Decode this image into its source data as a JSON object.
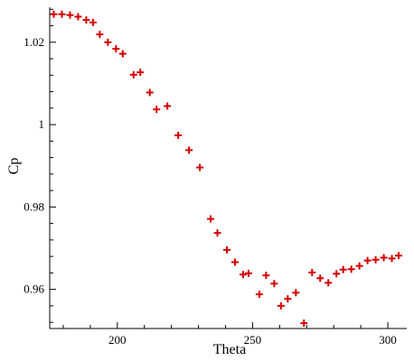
{
  "chart_data": {
    "type": "scatter",
    "xlabel": "Theta",
    "ylabel": "Cp",
    "xlim": [
      175,
      307
    ],
    "ylim": [
      0.9505,
      1.0285
    ],
    "xticks": [
      200,
      250,
      300
    ],
    "xtick_labels": [
      "200",
      "250",
      "300"
    ],
    "yticks": [
      0.96,
      0.98,
      1.0,
      1.02
    ],
    "ytick_labels": [
      "0.96",
      "0.98",
      "1",
      "1.02"
    ],
    "marker": "plus",
    "marker_color": "#d40000",
    "grid": false,
    "legend": "none",
    "series": [
      {
        "x": [
          176.5,
          179.5,
          182.5,
          185.5,
          188.5,
          191.0,
          193.5,
          196.5,
          199.5,
          202.0,
          206.0,
          208.5,
          212.0,
          214.5,
          218.5,
          222.5,
          226.5,
          230.5,
          234.5,
          237.0,
          240.5,
          243.5,
          246.5,
          248.5,
          252.5,
          255.0,
          258.0,
          260.5,
          263.0,
          266.0,
          269.0,
          272.0,
          275.0,
          278.0,
          281.0,
          283.5,
          286.5,
          289.5,
          292.5,
          295.5,
          298.5,
          301.5,
          304.0
        ],
        "y": [
          1.0268,
          1.0268,
          1.0266,
          1.0262,
          1.0254,
          1.0248,
          1.0219,
          1.02,
          1.0184,
          1.0172,
          1.0121,
          1.0127,
          1.0078,
          1.0037,
          1.0045,
          0.9974,
          0.9938,
          0.9896,
          0.9771,
          0.9737,
          0.9696,
          0.9666,
          0.9636,
          0.9639,
          0.9588,
          0.9634,
          0.9614,
          0.956,
          0.9577,
          0.9592,
          0.9518,
          0.9641,
          0.9627,
          0.9616,
          0.9638,
          0.9648,
          0.9649,
          0.9657,
          0.967,
          0.9672,
          0.9677,
          0.9675,
          0.9682
        ]
      }
    ]
  }
}
